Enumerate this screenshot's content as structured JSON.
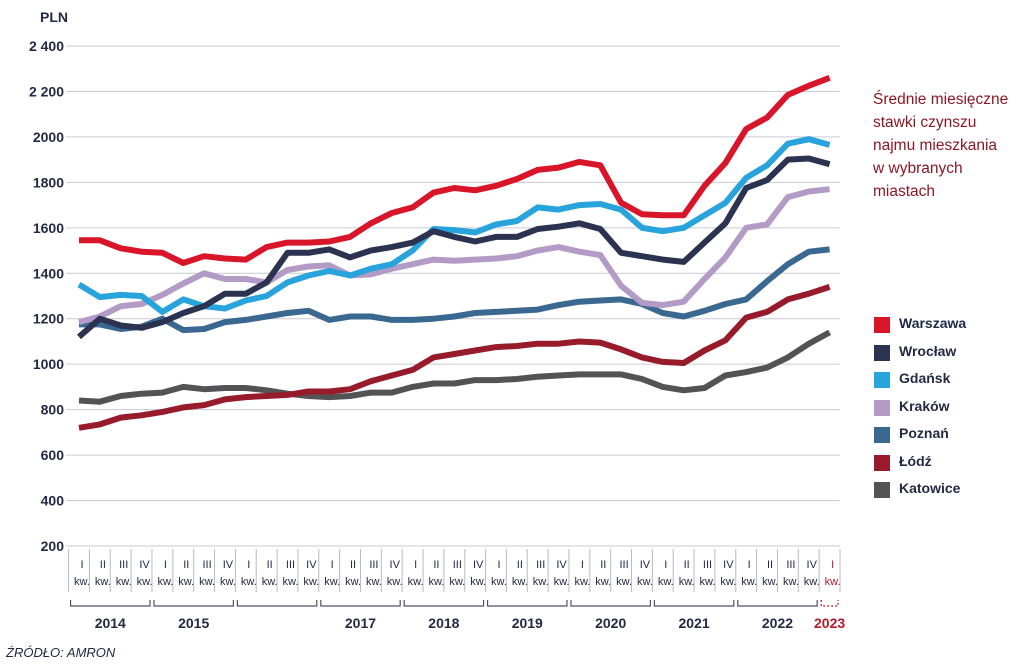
{
  "chart_data": {
    "type": "line",
    "ylabel": "PLN",
    "title": [
      "Średnie miesięczne",
      "stawki czynszu",
      "najmu mieszkania",
      "w wybranych",
      "miastach"
    ],
    "ylim": [
      200,
      2400
    ],
    "yticks": [
      200,
      400,
      600,
      800,
      1000,
      1200,
      1400,
      1600,
      1800,
      2000,
      2200,
      2400
    ],
    "ytick_labels": [
      "200",
      "400",
      "600",
      "800",
      "1000",
      "1200",
      "1400",
      "1600",
      "1800",
      "2000",
      "2 200",
      "2 400"
    ],
    "grid": true,
    "legend_position": "right",
    "x": [
      "I kw. 2014",
      "II kw. 2014",
      "III kw. 2014",
      "IV kw. 2014",
      "I kw. 2015",
      "II kw. 2015",
      "III kw. 2015",
      "IV kw. 2015",
      "I kw. 2016",
      "II kw. 2016",
      "III kw. 2016",
      "IV kw. 2016",
      "I kw. 2017",
      "II kw. 2017",
      "III kw. 2017",
      "IV kw. 2017",
      "I kw. 2018",
      "II kw. 2018",
      "III kw. 2018",
      "IV kw. 2018",
      "I kw. 2019",
      "II kw. 2019",
      "III kw. 2019",
      "IV kw. 2019",
      "I kw. 2020",
      "II kw. 2020",
      "III kw. 2020",
      "IV kw. 2020",
      "I kw. 2021",
      "II kw. 2021",
      "III kw. 2021",
      "IV kw. 2021",
      "I kw. 2022",
      "II kw. 2022",
      "III kw. 2022",
      "IV kw. 2022",
      "I kw. 2023"
    ],
    "quarter_labels": [
      "I",
      "II",
      "III",
      "IV",
      "I",
      "II",
      "III",
      "IV",
      "I",
      "II",
      "III",
      "IV",
      "I",
      "II",
      "III",
      "IV",
      "I",
      "II",
      "III",
      "IV",
      "I",
      "II",
      "III",
      "IV",
      "I",
      "II",
      "III",
      "IV",
      "I",
      "II",
      "III",
      "IV",
      "I",
      "II",
      "III",
      "IV",
      "I"
    ],
    "quarter_suffix": "kw.",
    "years": [
      {
        "label": "2014",
        "start": 0,
        "end": 3
      },
      {
        "label": "2015",
        "start": 4,
        "end": 7
      },
      {
        "label": "",
        "start": 8,
        "end": 11
      },
      {
        "label": "2017",
        "start": 12,
        "end": 15
      },
      {
        "label": "2018",
        "start": 16,
        "end": 19
      },
      {
        "label": "2019",
        "start": 20,
        "end": 23
      },
      {
        "label": "2020",
        "start": 24,
        "end": 27
      },
      {
        "label": "2021",
        "start": 28,
        "end": 31
      },
      {
        "label": "2022",
        "start": 32,
        "end": 35
      },
      {
        "label": "2023",
        "start": 36,
        "end": 36,
        "highlight": true
      }
    ],
    "series": [
      {
        "name": "Warszawa",
        "color": "#d9152a",
        "width": 6,
        "values": [
          1545,
          1545,
          1510,
          1495,
          1490,
          1445,
          1475,
          1465,
          1460,
          1515,
          1535,
          1535,
          1540,
          1560,
          1620,
          1665,
          1690,
          1755,
          1775,
          1765,
          1785,
          1815,
          1855,
          1865,
          1890,
          1875,
          1710,
          1660,
          1655,
          1655,
          1785,
          1885,
          2035,
          2085,
          2185,
          2225,
          2260
        ]
      },
      {
        "name": "Wrocław",
        "color": "#2b3350",
        "width": 6,
        "values": [
          1120,
          1200,
          1170,
          1160,
          1185,
          1225,
          1255,
          1310,
          1310,
          1360,
          1490,
          1490,
          1505,
          1470,
          1500,
          1515,
          1535,
          1585,
          1560,
          1540,
          1560,
          1560,
          1595,
          1605,
          1620,
          1595,
          1490,
          1475,
          1460,
          1450,
          1535,
          1620,
          1775,
          1810,
          1900,
          1905,
          1880
        ]
      },
      {
        "name": "Gdańsk",
        "color": "#28a3dc",
        "width": 6,
        "values": [
          1350,
          1295,
          1305,
          1300,
          1230,
          1285,
          1255,
          1245,
          1280,
          1300,
          1360,
          1390,
          1410,
          1390,
          1420,
          1440,
          1500,
          1595,
          1590,
          1580,
          1615,
          1630,
          1690,
          1680,
          1700,
          1705,
          1680,
          1600,
          1585,
          1600,
          1655,
          1710,
          1820,
          1875,
          1970,
          1990,
          1965
        ]
      },
      {
        "name": "Kraków",
        "color": "#b39bc6",
        "width": 6,
        "values": [
          1185,
          1210,
          1255,
          1265,
          1305,
          1355,
          1400,
          1375,
          1375,
          1360,
          1415,
          1430,
          1435,
          1390,
          1395,
          1420,
          1440,
          1460,
          1455,
          1460,
          1465,
          1475,
          1500,
          1515,
          1495,
          1480,
          1345,
          1270,
          1260,
          1275,
          1375,
          1470,
          1600,
          1615,
          1735,
          1760,
          1770
        ]
      },
      {
        "name": "Poznań",
        "color": "#3a6891",
        "width": 6,
        "values": [
          1175,
          1175,
          1155,
          1165,
          1200,
          1150,
          1155,
          1185,
          1195,
          1210,
          1225,
          1235,
          1195,
          1210,
          1210,
          1195,
          1195,
          1200,
          1210,
          1225,
          1230,
          1235,
          1240,
          1260,
          1275,
          1280,
          1285,
          1265,
          1225,
          1210,
          1235,
          1265,
          1285,
          1365,
          1440,
          1495,
          1505
        ]
      },
      {
        "name": "Łódź",
        "color": "#981b2c",
        "width": 6,
        "values": [
          720,
          735,
          765,
          775,
          790,
          810,
          820,
          845,
          855,
          860,
          865,
          880,
          880,
          890,
          925,
          950,
          975,
          1030,
          1045,
          1060,
          1075,
          1080,
          1090,
          1090,
          1100,
          1095,
          1065,
          1030,
          1010,
          1005,
          1060,
          1105,
          1205,
          1230,
          1285,
          1310,
          1340
        ]
      },
      {
        "name": "Katowice",
        "color": "#535355",
        "width": 6,
        "values": [
          840,
          835,
          860,
          870,
          875,
          900,
          890,
          895,
          895,
          885,
          870,
          860,
          855,
          860,
          875,
          875,
          900,
          915,
          915,
          930,
          930,
          935,
          945,
          950,
          955,
          955,
          955,
          935,
          900,
          885,
          895,
          950,
          965,
          985,
          1030,
          1090,
          1140
        ]
      }
    ],
    "source": "ŹRÓDŁO: AMRON"
  }
}
